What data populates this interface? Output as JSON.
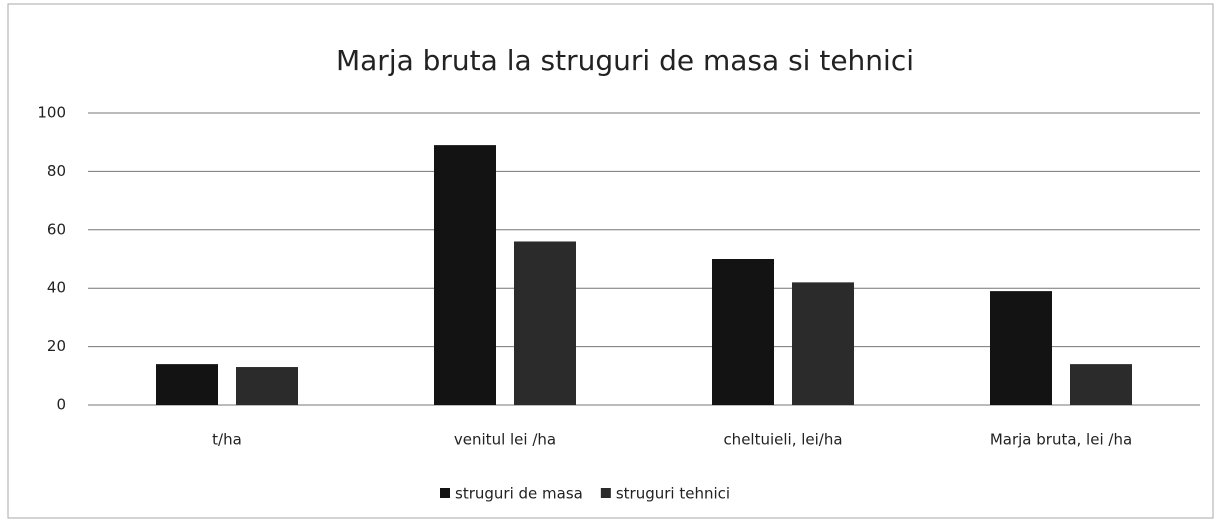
{
  "chart_data": {
    "type": "bar",
    "title": "Marja bruta la struguri de masa si tehnici",
    "categories": [
      "t/ha",
      "venitul lei /ha",
      "cheltuieli, lei/ha",
      "Marja bruta, lei /ha"
    ],
    "series": [
      {
        "name": "struguri de masa",
        "color": "#131313",
        "values": [
          14,
          89,
          50,
          39
        ]
      },
      {
        "name": "struguri tehnici",
        "color": "#2b2b2b",
        "values": [
          13,
          56,
          42,
          14
        ]
      }
    ],
    "ylim": [
      0,
      100
    ],
    "yticks": [
      0,
      20,
      40,
      60,
      80,
      100
    ],
    "grid": true,
    "legend": "bottom"
  }
}
